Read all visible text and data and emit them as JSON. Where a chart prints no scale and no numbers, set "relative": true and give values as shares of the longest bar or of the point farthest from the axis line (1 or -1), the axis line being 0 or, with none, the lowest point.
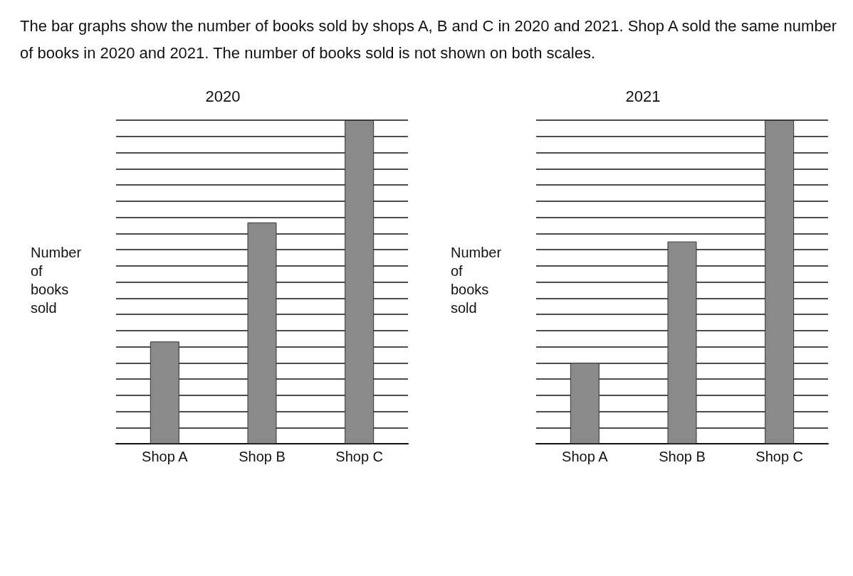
{
  "chart_data": [
    {
      "type": "bar",
      "relative": true,
      "title": "2020",
      "ylabel": "Number of books sold",
      "categories": [
        "Shop A",
        "Shop B",
        "Shop C"
      ],
      "annotations": [
        "The bar graphs show the number of books sold by shops A, B and C in 2020 and 2021. Shop A sold the same number of books in 2020 and 2021. The number of books sold is not shown on both scales."
      ],
      "color": "#8a8a8a",
      "values": [
        0.316,
        0.684,
        1
      ],
      "grid": "y"
    },
    {
      "type": "bar",
      "relative": true,
      "title": "2021",
      "ylabel": "Number of books sold",
      "categories": [
        "Shop A",
        "Shop B",
        "Shop C"
      ],
      "color": "#8a8a8a",
      "values": [
        0.25,
        0.625,
        1
      ],
      "grid": "y"
    }
  ]
}
